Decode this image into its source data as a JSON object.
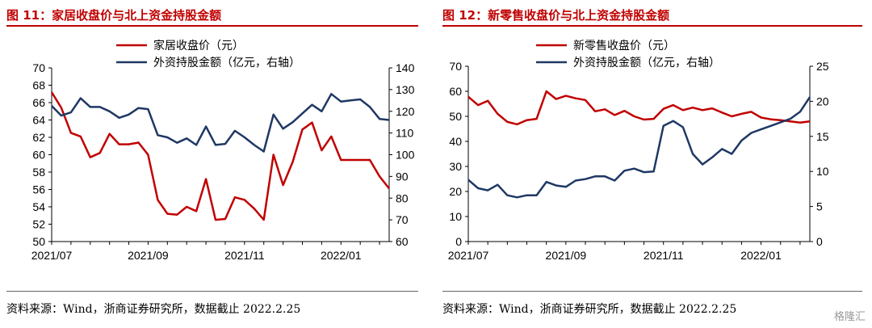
{
  "charts": [
    {
      "title": "图 11：家居收盘价与北上资金持股金额",
      "source": "资料来源：Wind，浙商证券研究所，数据截止 2022.2.25",
      "chart_data": {
        "type": "line",
        "x_ticks": [
          "2021/07",
          "2021/09",
          "2021/11",
          "2022/01"
        ],
        "x_tick_positions": [
          0,
          10,
          20,
          30
        ],
        "y_left": {
          "lim": [
            50,
            70
          ],
          "ticks": [
            50,
            52,
            54,
            56,
            58,
            60,
            62,
            64,
            66,
            68,
            70
          ]
        },
        "y_right": {
          "lim": [
            60,
            140
          ],
          "ticks": [
            60,
            70,
            80,
            90,
            100,
            110,
            120,
            130,
            140
          ]
        },
        "grid": false,
        "legend": "top-center",
        "series": [
          {
            "name": "家居收盘价（元）",
            "axis": "left",
            "color": "#c00000",
            "values": [
              67.2,
              65.4,
              62.5,
              62.1,
              59.7,
              60.2,
              62.4,
              61.2,
              61.2,
              61.4,
              60.0,
              54.8,
              53.2,
              53.1,
              54.0,
              53.5,
              57.2,
              52.5,
              52.6,
              55.1,
              54.8,
              53.8,
              52.5,
              60.0,
              56.5,
              59.2,
              62.9,
              63.7,
              60.5,
              62.1,
              59.4,
              59.4,
              59.4,
              59.4,
              57.5,
              56.1
            ]
          },
          {
            "name": "外资持股金额（亿元，右轴）",
            "axis": "right",
            "color": "#1f3864",
            "values": [
              122.5,
              118.0,
              119.5,
              126.0,
              122.0,
              122.0,
              120.0,
              117.0,
              118.5,
              121.5,
              121.0,
              109.0,
              108.0,
              105.5,
              107.5,
              104.5,
              113.0,
              104.5,
              105.0,
              111.0,
              108.0,
              104.5,
              101.5,
              118.5,
              112.0,
              115.0,
              119.0,
              123.0,
              120.0,
              128.0,
              124.5,
              125.0,
              125.5,
              122.0,
              116.5,
              116.0
            ]
          }
        ]
      }
    },
    {
      "title": "图 12：新零售收盘价与北上资金持股金额",
      "source": "资料来源：Wind，浙商证券研究所，数据截止 2022.2.25",
      "chart_data": {
        "type": "line",
        "x_ticks": [
          "2021/07",
          "2021/09",
          "2021/11",
          "2022/01"
        ],
        "x_tick_positions": [
          0,
          10,
          20,
          30
        ],
        "y_left": {
          "lim": [
            0,
            70
          ],
          "ticks": [
            0,
            10,
            20,
            30,
            40,
            50,
            60,
            70
          ]
        },
        "y_right": {
          "lim": [
            0,
            25
          ],
          "ticks": [
            0,
            5,
            10,
            15,
            20,
            25
          ]
        },
        "grid": false,
        "legend": "top-center",
        "series": [
          {
            "name": "新零售收盘价（元）",
            "axis": "left",
            "color": "#c00000",
            "values": [
              57.8,
              54.5,
              56.2,
              51.0,
              47.8,
              46.8,
              48.5,
              49.0,
              60.0,
              56.9,
              58.2,
              57.2,
              56.5,
              52.0,
              52.8,
              50.5,
              52.2,
              50.0,
              48.7,
              49.0,
              53.0,
              54.5,
              52.5,
              53.5,
              52.5,
              53.2,
              51.5,
              50.0,
              51.0,
              51.8,
              49.5,
              48.8,
              48.5,
              48.0,
              47.5,
              48.0
            ]
          },
          {
            "name": "外资持股金额（亿元，右轴）",
            "axis": "right",
            "color": "#1f3864",
            "values": [
              8.8,
              7.6,
              7.3,
              8.1,
              6.6,
              6.3,
              6.6,
              6.6,
              8.5,
              8.0,
              7.8,
              8.7,
              8.9,
              9.3,
              9.3,
              8.7,
              10.1,
              10.4,
              9.9,
              10.0,
              16.5,
              17.2,
              16.3,
              12.5,
              11.0,
              12.0,
              13.2,
              12.5,
              14.4,
              15.5,
              16.0,
              16.5,
              17.0,
              17.5,
              18.5,
              20.6
            ]
          }
        ]
      }
    }
  ],
  "watermark": "格隆汇"
}
